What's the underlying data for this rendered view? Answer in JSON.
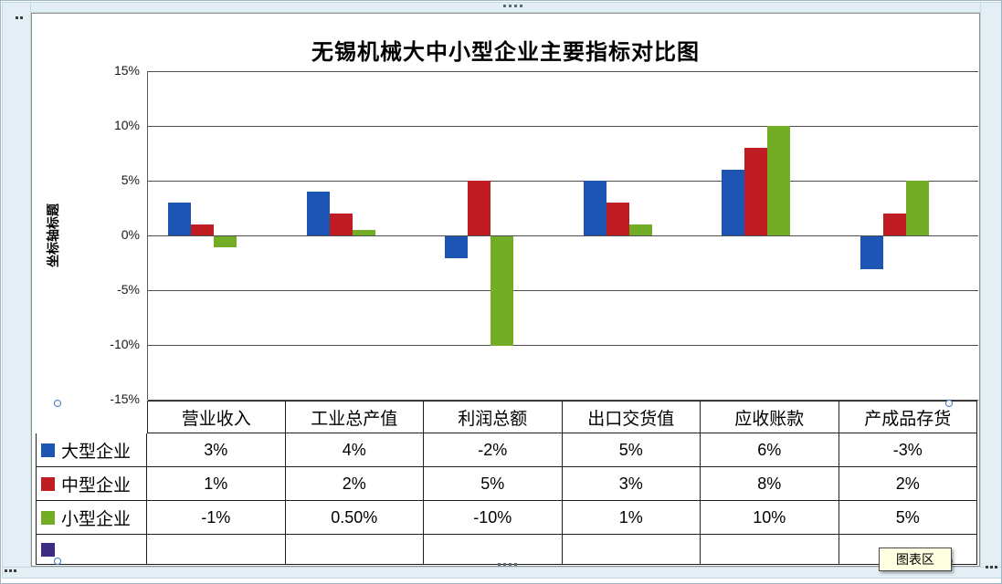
{
  "window": {
    "chart_area_tooltip": "图表区"
  },
  "chart_data": {
    "type": "bar",
    "title": "无锡机械大中小型企业主要指标对比图",
    "y_axis_title": "坐标轴标题",
    "categories": [
      "营业收入",
      "工业总产值",
      "利润总额",
      "出口交货值",
      "应收账款",
      "产成品存货"
    ],
    "series": [
      {
        "name": "大型企业",
        "color": "#1d55b5",
        "values": [
          3,
          4,
          -2,
          5,
          6,
          -3
        ],
        "display": [
          "3%",
          "4%",
          "-2%",
          "5%",
          "6%",
          "-3%"
        ]
      },
      {
        "name": "中型企业",
        "color": "#bf1d23",
        "values": [
          1,
          2,
          5,
          3,
          8,
          2
        ],
        "display": [
          "1%",
          "2%",
          "5%",
          "3%",
          "8%",
          "2%"
        ]
      },
      {
        "name": "小型企业",
        "color": "#73ad26",
        "values": [
          -1,
          0.5,
          -10,
          1,
          10,
          5
        ],
        "display": [
          "-1%",
          "0.50%",
          "-10%",
          "1%",
          "10%",
          "5%"
        ]
      }
    ],
    "extra_legend_row": {
      "name": "",
      "color": "#3e2b84",
      "display": [
        "",
        "",
        "",
        "",
        "",
        ""
      ]
    },
    "y_ticks": {
      "labels": [
        "15%",
        "10%",
        "5%",
        "0%",
        "-5%",
        "-10%",
        "-15%"
      ],
      "values": [
        15,
        10,
        5,
        0,
        -5,
        -10,
        -15
      ]
    },
    "ylim": [
      -15,
      15
    ],
    "grid": true,
    "legend_position": "data-table-left"
  }
}
